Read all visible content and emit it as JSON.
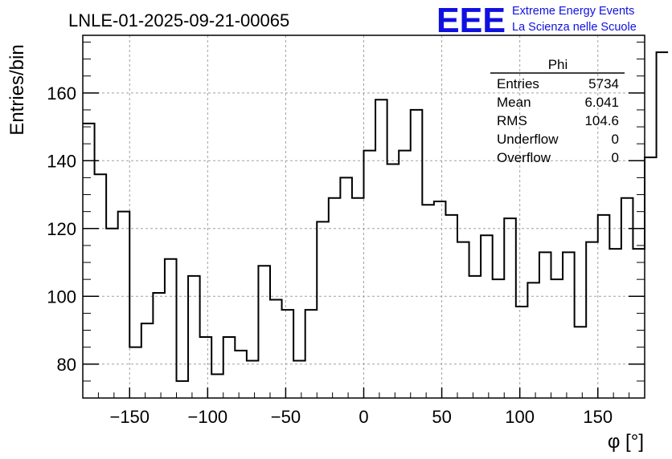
{
  "chart_data": {
    "type": "histogram",
    "title": "LNLE-01-2025-09-21-00065",
    "xlabel": "φ [°]",
    "ylabel": "Entries/bin",
    "xlim": [
      -180,
      180
    ],
    "ylim": [
      70,
      177
    ],
    "xticks": [
      -150,
      -100,
      -50,
      0,
      50,
      100,
      150
    ],
    "yticks": [
      80,
      100,
      120,
      140,
      160
    ],
    "grid": true,
    "bin_width": 7.5,
    "bin_start": -180,
    "values": [
      151,
      136,
      120,
      125,
      85,
      92,
      101,
      111,
      75,
      106,
      88,
      77,
      88,
      84,
      81,
      109,
      99,
      96,
      81,
      96,
      122,
      129,
      135,
      129,
      143,
      158,
      139,
      143,
      155,
      127,
      128,
      124,
      116,
      106,
      118,
      105,
      123,
      97,
      104,
      113,
      105,
      113,
      91,
      116,
      124,
      114,
      129,
      114,
      141,
      172
    ],
    "stats_box": {
      "title": "Phi",
      "rows": [
        {
          "label": "Entries",
          "value": "5734"
        },
        {
          "label": "Mean",
          "value": "6.041"
        },
        {
          "label": "RMS",
          "value": "104.6"
        },
        {
          "label": "Underflow",
          "value": "0"
        },
        {
          "label": "Overflow",
          "value": "0"
        }
      ]
    }
  },
  "logo": {
    "text": "EEE",
    "line1": "Extreme Energy Events",
    "line2": "La Scienza nelle Scuole",
    "color": "#1010e0"
  },
  "colors": {
    "line": "#000000",
    "grid": "#a0a0a0",
    "logo": "#1010e0"
  }
}
